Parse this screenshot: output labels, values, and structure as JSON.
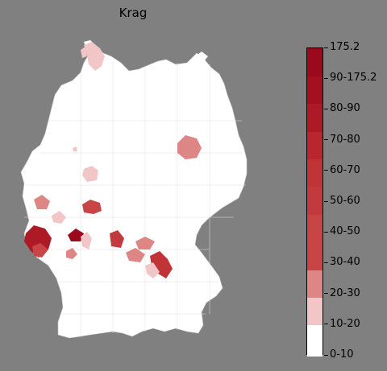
{
  "title": "Krag",
  "legend": {
    "labels": [
      "0-10",
      "10-20",
      "20-30",
      "30-40",
      "40-50",
      "50-60",
      "60-70",
      "70-80",
      "80-90",
      "90-175.2",
      "175.2"
    ],
    "colors": [
      "#ffffff",
      "#f2c6c6",
      "#de8585",
      "#c94444",
      "#c84545",
      "#c23a3d",
      "#c03438",
      "#b9262d",
      "#ad1a26",
      "#a4101f",
      "#9a0a1c"
    ]
  },
  "chart_data": {
    "type": "choropleth",
    "title": "Krag",
    "region": "Germany (districts)",
    "legend_bins": [
      "0-10",
      "10-20",
      "20-30",
      "30-40",
      "40-50",
      "50-60",
      "60-70",
      "70-80",
      "80-90",
      "90-175.2",
      "175.2"
    ],
    "colorbar_min": 0,
    "colorbar_max": 175.2
  }
}
